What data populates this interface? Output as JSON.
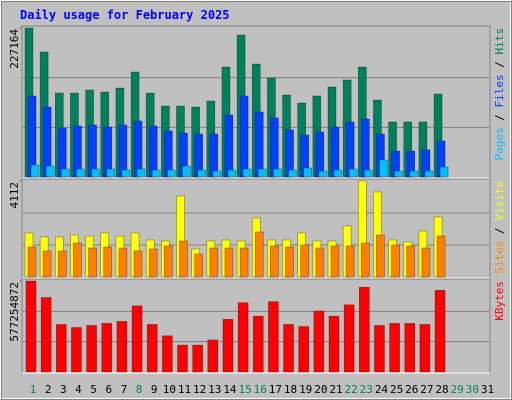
{
  "chart_data": {
    "type": "bar",
    "title": "Daily usage for February 2025",
    "categories": [
      "1",
      "2",
      "3",
      "4",
      "5",
      "6",
      "7",
      "8",
      "9",
      "10",
      "11",
      "12",
      "13",
      "14",
      "15",
      "16",
      "17",
      "18",
      "19",
      "20",
      "21",
      "22",
      "23",
      "24",
      "25",
      "26",
      "27",
      "28",
      "29",
      "30",
      "31"
    ],
    "category_colors": [
      "#008060",
      "#000000",
      "#000000",
      "#000000",
      "#000000",
      "#000000",
      "#000000",
      "#008060",
      "#000000",
      "#000000",
      "#000000",
      "#000000",
      "#000000",
      "#000000",
      "#008060",
      "#008060",
      "#000000",
      "#000000",
      "#000000",
      "#000000",
      "#000000",
      "#008060",
      "#008060",
      "#000000",
      "#000000",
      "#000000",
      "#000000",
      "#000000",
      "#008060",
      "#008060",
      "#000000"
    ],
    "legend_separator": " / ",
    "panels": [
      {
        "ylim": [
          0,
          227164
        ],
        "yticks": [
          227164
        ],
        "series": [
          {
            "name": "Hits",
            "color": "#00805c",
            "values": [
              227164,
              190580,
              128000,
              128000,
              132600,
              129600,
              135700,
              160100,
              128000,
              108200,
              108200,
              106700,
              115900,
              167700,
              216500,
              172300,
              150900,
              125000,
              112800,
              123500,
              137200,
              147900,
              167700,
              117400,
              83900,
              83900,
              83900,
              126500,
              0,
              0,
              0
            ]
          },
          {
            "name": "Files",
            "color": "#0040ff",
            "values": [
              123500,
              106700,
              74700,
              77800,
              79300,
              76200,
              79300,
              85400,
              77800,
              70100,
              67100,
              65600,
              65600,
              94500,
              123500,
              99100,
              90000,
              71700,
              64000,
              68600,
              76200,
              83900,
              88400,
              65600,
              39600,
              39600,
              41200,
              54900,
              0,
              0,
              0
            ]
          },
          {
            "name": "Pages",
            "color": "#00c0ff",
            "values": [
              18300,
              16800,
              12200,
              12200,
              12200,
              12200,
              10700,
              12200,
              10700,
              10700,
              16800,
              10700,
              9100,
              10700,
              12200,
              12200,
              12200,
              10700,
              13700,
              9100,
              10700,
              12200,
              10700,
              25900,
              9100,
              9100,
              9100,
              15200,
              0,
              0,
              0
            ]
          }
        ]
      },
      {
        "ylim": [
          0,
          4112
        ],
        "yticks": [
          4112
        ],
        "series": [
          {
            "name": "Visits",
            "color": "#ffff00",
            "values": [
              1885,
              1713,
              1713,
              1799,
              1756,
              1885,
              1756,
              1885,
              1585,
              1542,
              3470,
              1199,
              1542,
              1585,
              1542,
              2527,
              1585,
              1585,
              1885,
              1542,
              1542,
              2185,
              4112,
              3641,
              1585,
              1499,
              1970,
              2570,
              0,
              0,
              0
            ]
          },
          {
            "name": "Sites",
            "color": "#ff8000",
            "values": [
              1285,
              1114,
              1114,
              1456,
              1242,
              1285,
              1242,
              1114,
              1199,
              1328,
              1542,
              985,
              1242,
              1242,
              1242,
              1928,
              1328,
              1285,
              1371,
              1242,
              1328,
              1328,
              1456,
              1799,
              1371,
              1328,
              1242,
              1756,
              0,
              0,
              0
            ]
          }
        ]
      },
      {
        "ylim": [
          0,
          577254872
        ],
        "yticks": [
          577254872
        ],
        "series": [
          {
            "name": "KBytes",
            "color": "#ff0000",
            "values": [
              577254872,
              472300000,
              301700000,
              282100000,
              295200000,
              308300000,
              321400000,
              419800000,
              301700000,
              229600000,
              170600000,
              170600000,
              203400000,
              334600000,
              439500000,
              354200000,
              446100000,
              301700000,
              288600000,
              387000000,
              354200000,
              426400000,
              537900000,
              295200000,
              308300000,
              308300000,
              301700000,
              518200000,
              0,
              0,
              0
            ]
          }
        ]
      }
    ]
  }
}
